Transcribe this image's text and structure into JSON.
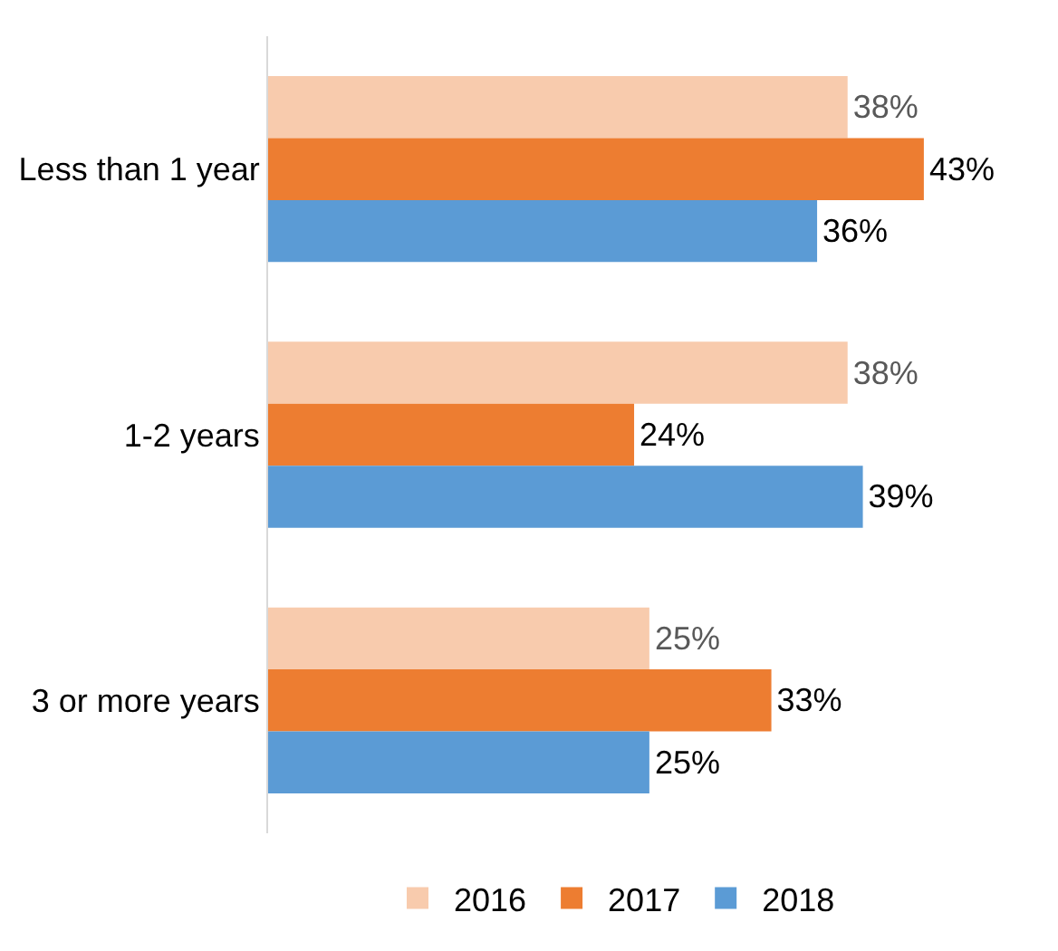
{
  "chart_data": {
    "type": "bar",
    "orientation": "horizontal",
    "categories": [
      "Less than 1 year",
      "1-2 years",
      "3 or more years"
    ],
    "series": [
      {
        "name": "2016",
        "color": "#f8cbad",
        "values": [
          38,
          38,
          25
        ],
        "value_labels": [
          "38%",
          "38%",
          "25%"
        ]
      },
      {
        "name": "2017",
        "color": "#ed7d31",
        "values": [
          43,
          24,
          33
        ],
        "value_labels": [
          "43%",
          "24%",
          "33%"
        ]
      },
      {
        "name": "2018",
        "color": "#5b9bd5",
        "values": [
          36,
          39,
          25
        ],
        "value_labels": [
          "36%",
          "39%",
          "25%"
        ]
      }
    ],
    "tick_labels": "y",
    "legend": "bottom"
  }
}
